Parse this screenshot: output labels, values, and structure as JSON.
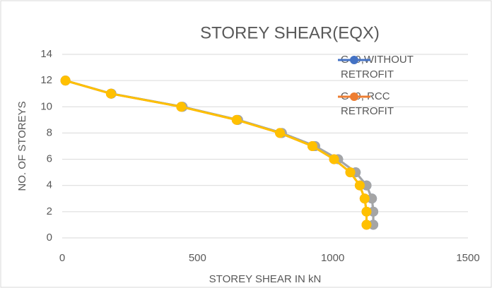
{
  "chart_data": {
    "type": "line",
    "title": "STOREY SHEAR(EQX)",
    "x_label": "STOREY SHEAR IN kN",
    "y_label": "NO. OF STOREYS",
    "series": [
      {
        "name": "G+9,WITHOUT RETROFIT",
        "color": "#4472c4",
        "x": [
          12,
          182,
          445,
          650,
          812,
          935,
          1020,
          1085,
          1125,
          1145,
          1150,
          1150
        ],
        "values": [
          12,
          11,
          10,
          9,
          8,
          7,
          6,
          5,
          4,
          3,
          2,
          1
        ]
      },
      {
        "name": "G+9, RCC RETROFIT",
        "color": "#ed7d31",
        "x": [
          12,
          180,
          440,
          645,
          805,
          925,
          1005,
          1065,
          1100,
          1118,
          1125,
          1125
        ],
        "values": [
          12,
          11,
          10,
          9,
          8,
          7,
          6,
          5,
          4,
          3,
          2,
          1
        ]
      },
      {
        "color": "#a5a5a5",
        "x": [
          12,
          182,
          445,
          650,
          812,
          935,
          1020,
          1085,
          1125,
          1145,
          1150,
          1150
        ],
        "values": [
          12,
          11,
          10,
          9,
          8,
          7,
          6,
          5,
          4,
          3,
          2,
          1
        ]
      },
      {
        "color": "#ffc000",
        "x": [
          12,
          180,
          440,
          645,
          805,
          925,
          1005,
          1065,
          1100,
          1118,
          1125,
          1125
        ],
        "values": [
          12,
          11,
          10,
          9,
          8,
          7,
          6,
          5,
          4,
          3,
          2,
          1
        ]
      }
    ],
    "xlim": [
      0,
      1500
    ],
    "xticks": [
      0,
      500,
      1000,
      1500
    ],
    "ylim": [
      0,
      14
    ],
    "yticks": [
      0,
      2,
      4,
      6,
      8,
      10,
      12,
      14
    ],
    "grid": true,
    "legend": "top-right"
  }
}
